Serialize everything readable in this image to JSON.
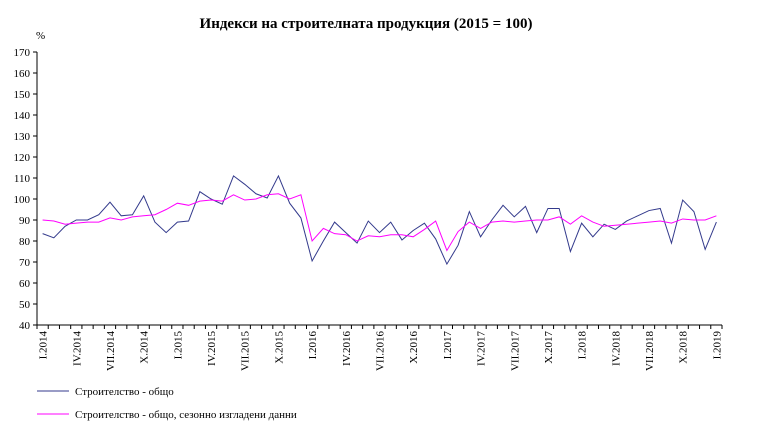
{
  "chart_data": {
    "type": "line",
    "title": "Индекси на строителната продукция (2015 = 100)",
    "ylabel": "%",
    "xlabel": "",
    "ylim": [
      40,
      170
    ],
    "yticks": [
      40,
      50,
      60,
      70,
      80,
      90,
      100,
      110,
      120,
      130,
      140,
      150,
      160,
      170
    ],
    "grid": false,
    "legend_position": "bottom-left",
    "x_tick_labels": [
      {
        "index": 0,
        "label": "I.2014"
      },
      {
        "index": 3,
        "label": "IV.2014"
      },
      {
        "index": 6,
        "label": "VII.2014"
      },
      {
        "index": 9,
        "label": "X.2014"
      },
      {
        "index": 12,
        "label": "I.2015"
      },
      {
        "index": 15,
        "label": "IV.2015"
      },
      {
        "index": 18,
        "label": "VII.2015"
      },
      {
        "index": 21,
        "label": "X.2015"
      },
      {
        "index": 24,
        "label": "I.2016"
      },
      {
        "index": 27,
        "label": "IV.2016"
      },
      {
        "index": 30,
        "label": "VII.2016"
      },
      {
        "index": 33,
        "label": "X.2016"
      },
      {
        "index": 36,
        "label": "I.2017"
      },
      {
        "index": 39,
        "label": "IV.2017"
      },
      {
        "index": 42,
        "label": "VII.2017"
      },
      {
        "index": 45,
        "label": "X.2017"
      },
      {
        "index": 48,
        "label": "I.2018"
      },
      {
        "index": 51,
        "label": "IV.2018"
      },
      {
        "index": 54,
        "label": "VII.2018"
      },
      {
        "index": 57,
        "label": "X.2018"
      },
      {
        "index": 60,
        "label": "I.2019"
      }
    ],
    "series": [
      {
        "name": "Строителство - общо",
        "color": "#333a8c",
        "values": [
          83.5,
          81.5,
          87,
          90,
          90,
          92.5,
          98.5,
          92,
          92.5,
          101.5,
          89,
          84,
          89,
          89.5,
          103.5,
          100,
          97.5,
          111,
          107,
          102.5,
          100.5,
          111,
          98,
          91,
          70.5,
          80,
          89,
          84,
          79,
          89.5,
          84,
          89,
          80.5,
          85,
          88.5,
          81,
          69,
          78,
          94,
          82,
          90,
          97,
          91.5,
          96.5,
          84,
          95.5,
          95.5,
          75,
          88.5,
          82,
          88,
          85.5,
          89.5,
          92,
          94.5,
          95.5,
          79,
          99.5,
          94,
          76,
          89
        ]
      },
      {
        "name": "Строителство - общо, сезонно изгладени данни",
        "color": "#ff00ff",
        "values": [
          90,
          89.5,
          88,
          88.5,
          89,
          89,
          91,
          90,
          91.5,
          92,
          92.5,
          95,
          98,
          97,
          99,
          99.5,
          99,
          102,
          99.5,
          100,
          102,
          102.5,
          100,
          102,
          80,
          86,
          83.5,
          83,
          80,
          82.5,
          82,
          83,
          83,
          82,
          85.5,
          89.5,
          75.5,
          84.5,
          89,
          86,
          89,
          89.5,
          89,
          89.5,
          90,
          90,
          91.5,
          88,
          92,
          89,
          87,
          87.5,
          88,
          88.5,
          89,
          89.5,
          88.5,
          90.5,
          90,
          90,
          92
        ]
      }
    ]
  }
}
